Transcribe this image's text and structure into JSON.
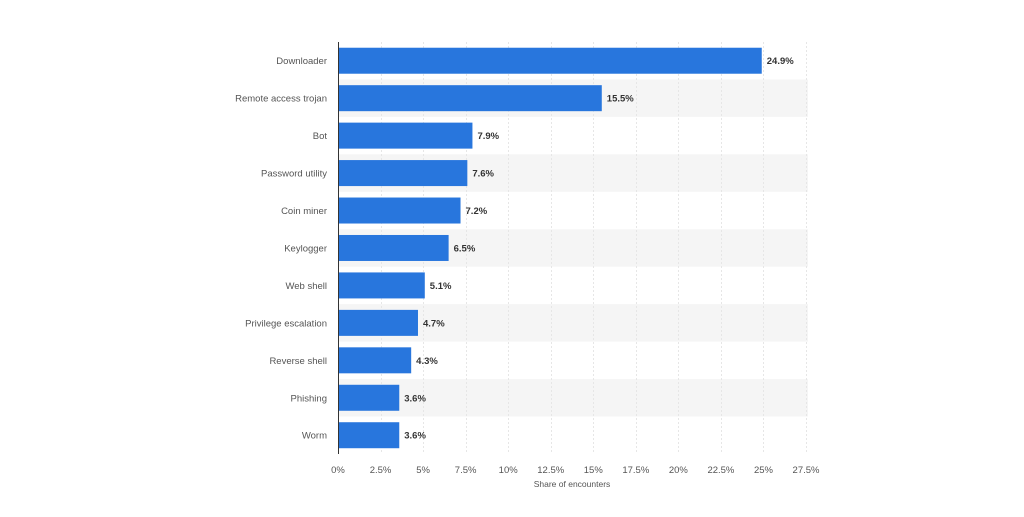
{
  "chart_data": {
    "type": "bar",
    "orientation": "horizontal",
    "categories": [
      "Downloader",
      "Remote access trojan",
      "Bot",
      "Password utility",
      "Coin miner",
      "Keylogger",
      "Web shell",
      "Privilege escalation",
      "Reverse shell",
      "Phishing",
      "Worm"
    ],
    "values": [
      24.9,
      15.5,
      7.9,
      7.6,
      7.2,
      6.5,
      5.1,
      4.7,
      4.3,
      3.6,
      3.6
    ],
    "value_labels": [
      "24.9%",
      "15.5%",
      "7.9%",
      "7.6%",
      "7.2%",
      "6.5%",
      "5.1%",
      "4.7%",
      "4.3%",
      "3.6%",
      "3.6%"
    ],
    "xlabel": "Share of encounters",
    "xlim": [
      0,
      27.5
    ],
    "x_ticks": [
      0,
      2.5,
      5,
      7.5,
      10,
      12.5,
      15,
      17.5,
      20,
      22.5,
      25,
      27.5
    ],
    "x_tick_labels": [
      "0%",
      "2.5%",
      "5%",
      "7.5%",
      "10%",
      "12.5%",
      "15%",
      "17.5%",
      "20%",
      "22.5%",
      "25%",
      "27.5%"
    ],
    "grid": true,
    "legend": false,
    "colors": {
      "bar": "#2876dd",
      "band": "#f5f5f5",
      "grid": "#e6e6e6",
      "axis": "#333333",
      "label": "#555555",
      "value_label": "#333333"
    }
  }
}
